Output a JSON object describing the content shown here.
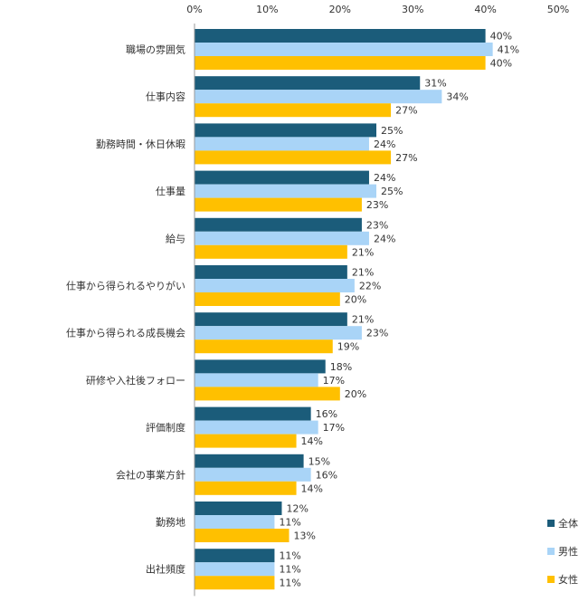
{
  "chart_data": {
    "type": "bar",
    "orientation": "horizontal",
    "categories": [
      "職場の雰囲気",
      "仕事内容",
      "勤務時間・休日休暇",
      "仕事量",
      "給与",
      "仕事から得られるやりがい",
      "仕事から得られる成長機会",
      "研修や入社後フォロー",
      "評価制度",
      "会社の事業方針",
      "勤務地",
      "出社頻度"
    ],
    "series": [
      {
        "name": "全体",
        "color": "#1b5c7a",
        "values": [
          40,
          31,
          25,
          24,
          23,
          21,
          21,
          18,
          16,
          15,
          12,
          11
        ]
      },
      {
        "name": "男性",
        "color": "#a9d4f7",
        "values": [
          41,
          34,
          24,
          25,
          24,
          22,
          23,
          17,
          17,
          16,
          11,
          11
        ]
      },
      {
        "name": "女性",
        "color": "#ffc000",
        "values": [
          40,
          27,
          27,
          23,
          21,
          20,
          19,
          20,
          14,
          14,
          13,
          11
        ]
      }
    ],
    "xlim": [
      0,
      50
    ],
    "xticks": [
      "0%",
      "10%",
      "20%",
      "30%",
      "40%",
      "50%"
    ],
    "value_suffix": "%",
    "xaxis_position": "top",
    "grid": false,
    "legend": "bottom-right"
  }
}
